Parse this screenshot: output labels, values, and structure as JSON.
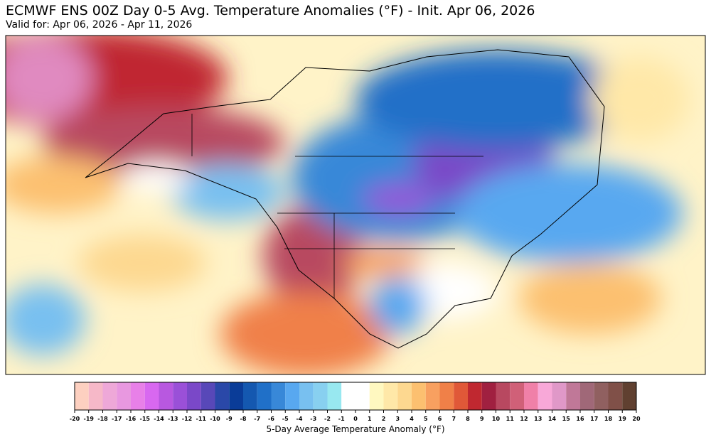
{
  "header": {
    "title": "ECMWF ENS 00Z Day 0-5 Avg. Temperature Anomalies (°F) - Init. Apr 06, 2026",
    "subtitle": "Valid for: Apr 06, 2026 - Apr 11, 2026"
  },
  "colorbar": {
    "label": "5-Day Average Temperature Anomaly (°F)",
    "ticks": [
      -20,
      -19,
      -18,
      -17,
      -16,
      -15,
      -14,
      -13,
      -12,
      -11,
      -10,
      -9,
      -8,
      -7,
      -6,
      -5,
      -4,
      -3,
      -2,
      -1,
      0,
      1,
      2,
      3,
      4,
      5,
      6,
      7,
      8,
      9,
      10,
      11,
      12,
      13,
      14,
      15,
      16,
      17,
      18,
      19,
      20
    ],
    "colors": [
      "#fdd0c0",
      "#f6b8c8",
      "#eea8d8",
      "#e898e0",
      "#e880e8",
      "#d868f0",
      "#b858e0",
      "#9a50d8",
      "#7a48c8",
      "#5848b8",
      "#2a48a8",
      "#0a3c98",
      "#1458b0",
      "#2070c8",
      "#3888d8",
      "#58a8f0",
      "#78c0f0",
      "#88d0f0",
      "#98e8f0",
      "#ffffff",
      "#ffffff",
      "#fff8c0",
      "#ffe8a8",
      "#fdd890",
      "#fcc070",
      "#f8a060",
      "#f08048",
      "#e05838",
      "#c02830",
      "#a02040",
      "#b84860",
      "#d06078",
      "#f080a8",
      "#f8a8d8",
      "#e098c8",
      "#c07898",
      "#a06878",
      "#906060",
      "#805048",
      "#604030"
    ]
  }
}
